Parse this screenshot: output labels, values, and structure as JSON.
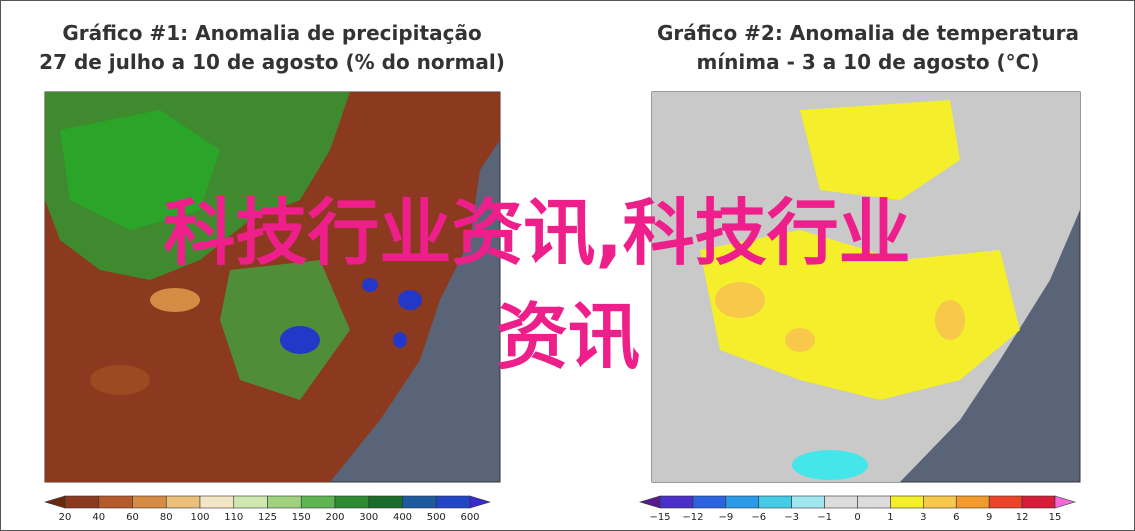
{
  "panels": [
    {
      "title_lines": [
        "Gráfico #1: Anomalia de precipitação",
        "27 de julho a 10 de agosto (% do normal)"
      ],
      "colorbar_labels": [
        "20",
        "40",
        "60",
        "80",
        "100",
        "110",
        "125",
        "150",
        "200",
        "300",
        "400",
        "500",
        "600"
      ]
    },
    {
      "title_lines": [
        "Gráfico #2: Anomalia de temperatura",
        "mínima - 3 a 10 de agosto (°C)"
      ],
      "colorbar_labels": [
        "−15",
        "−12",
        "−9",
        "−6",
        "−3",
        "−1",
        "0",
        "1",
        "3",
        "6",
        "9",
        "12",
        "15"
      ]
    }
  ],
  "overlay": {
    "lines": [
      "科技行业资讯,科技行业",
      "资讯"
    ]
  }
}
